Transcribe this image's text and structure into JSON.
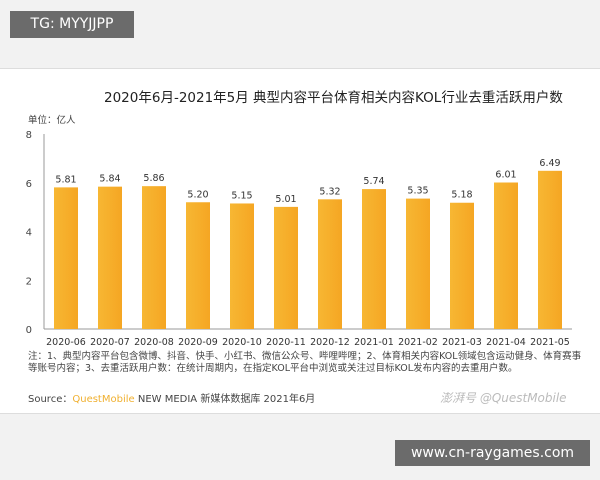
{
  "badge_top": "TG: MYYJJPP",
  "badge_bottom": "www.cn-raygames.com",
  "watermark": "澎湃号 @QuestMobile",
  "notes": "注：1、典型内容平台包含微博、抖音、快手、小红书、微信公众号、哔哩哔哩；2、体育相关内容KOL领域包含运动健身、体育赛事等账号内容；3、去重活跃用户数：在统计周期内，在指定KOL平台中浏览或关注过目标KOL发布内容的去重用户数。",
  "source_label": "Source：",
  "source_brand": "QuestMobile",
  "source_rest": " NEW MEDIA 新媒体数据库 2021年6月",
  "chart_data": {
    "type": "bar",
    "title": "2020年6月-2021年5月 典型内容平台体育相关内容KOL行业去重活跃用户数",
    "ylabel": "单位：亿人",
    "categories": [
      "2020-06",
      "2020-07",
      "2020-08",
      "2020-09",
      "2020-10",
      "2020-11",
      "2020-12",
      "2021-01",
      "2021-02",
      "2021-03",
      "2021-04",
      "2021-05"
    ],
    "values": [
      5.81,
      5.84,
      5.86,
      5.2,
      5.15,
      5.01,
      5.32,
      5.74,
      5.35,
      5.18,
      6.01,
      6.49
    ],
    "yticks": [
      0,
      2,
      4,
      6,
      8
    ],
    "ylim": [
      0,
      8
    ],
    "grid": false,
    "bar_color": "#f5a623"
  }
}
